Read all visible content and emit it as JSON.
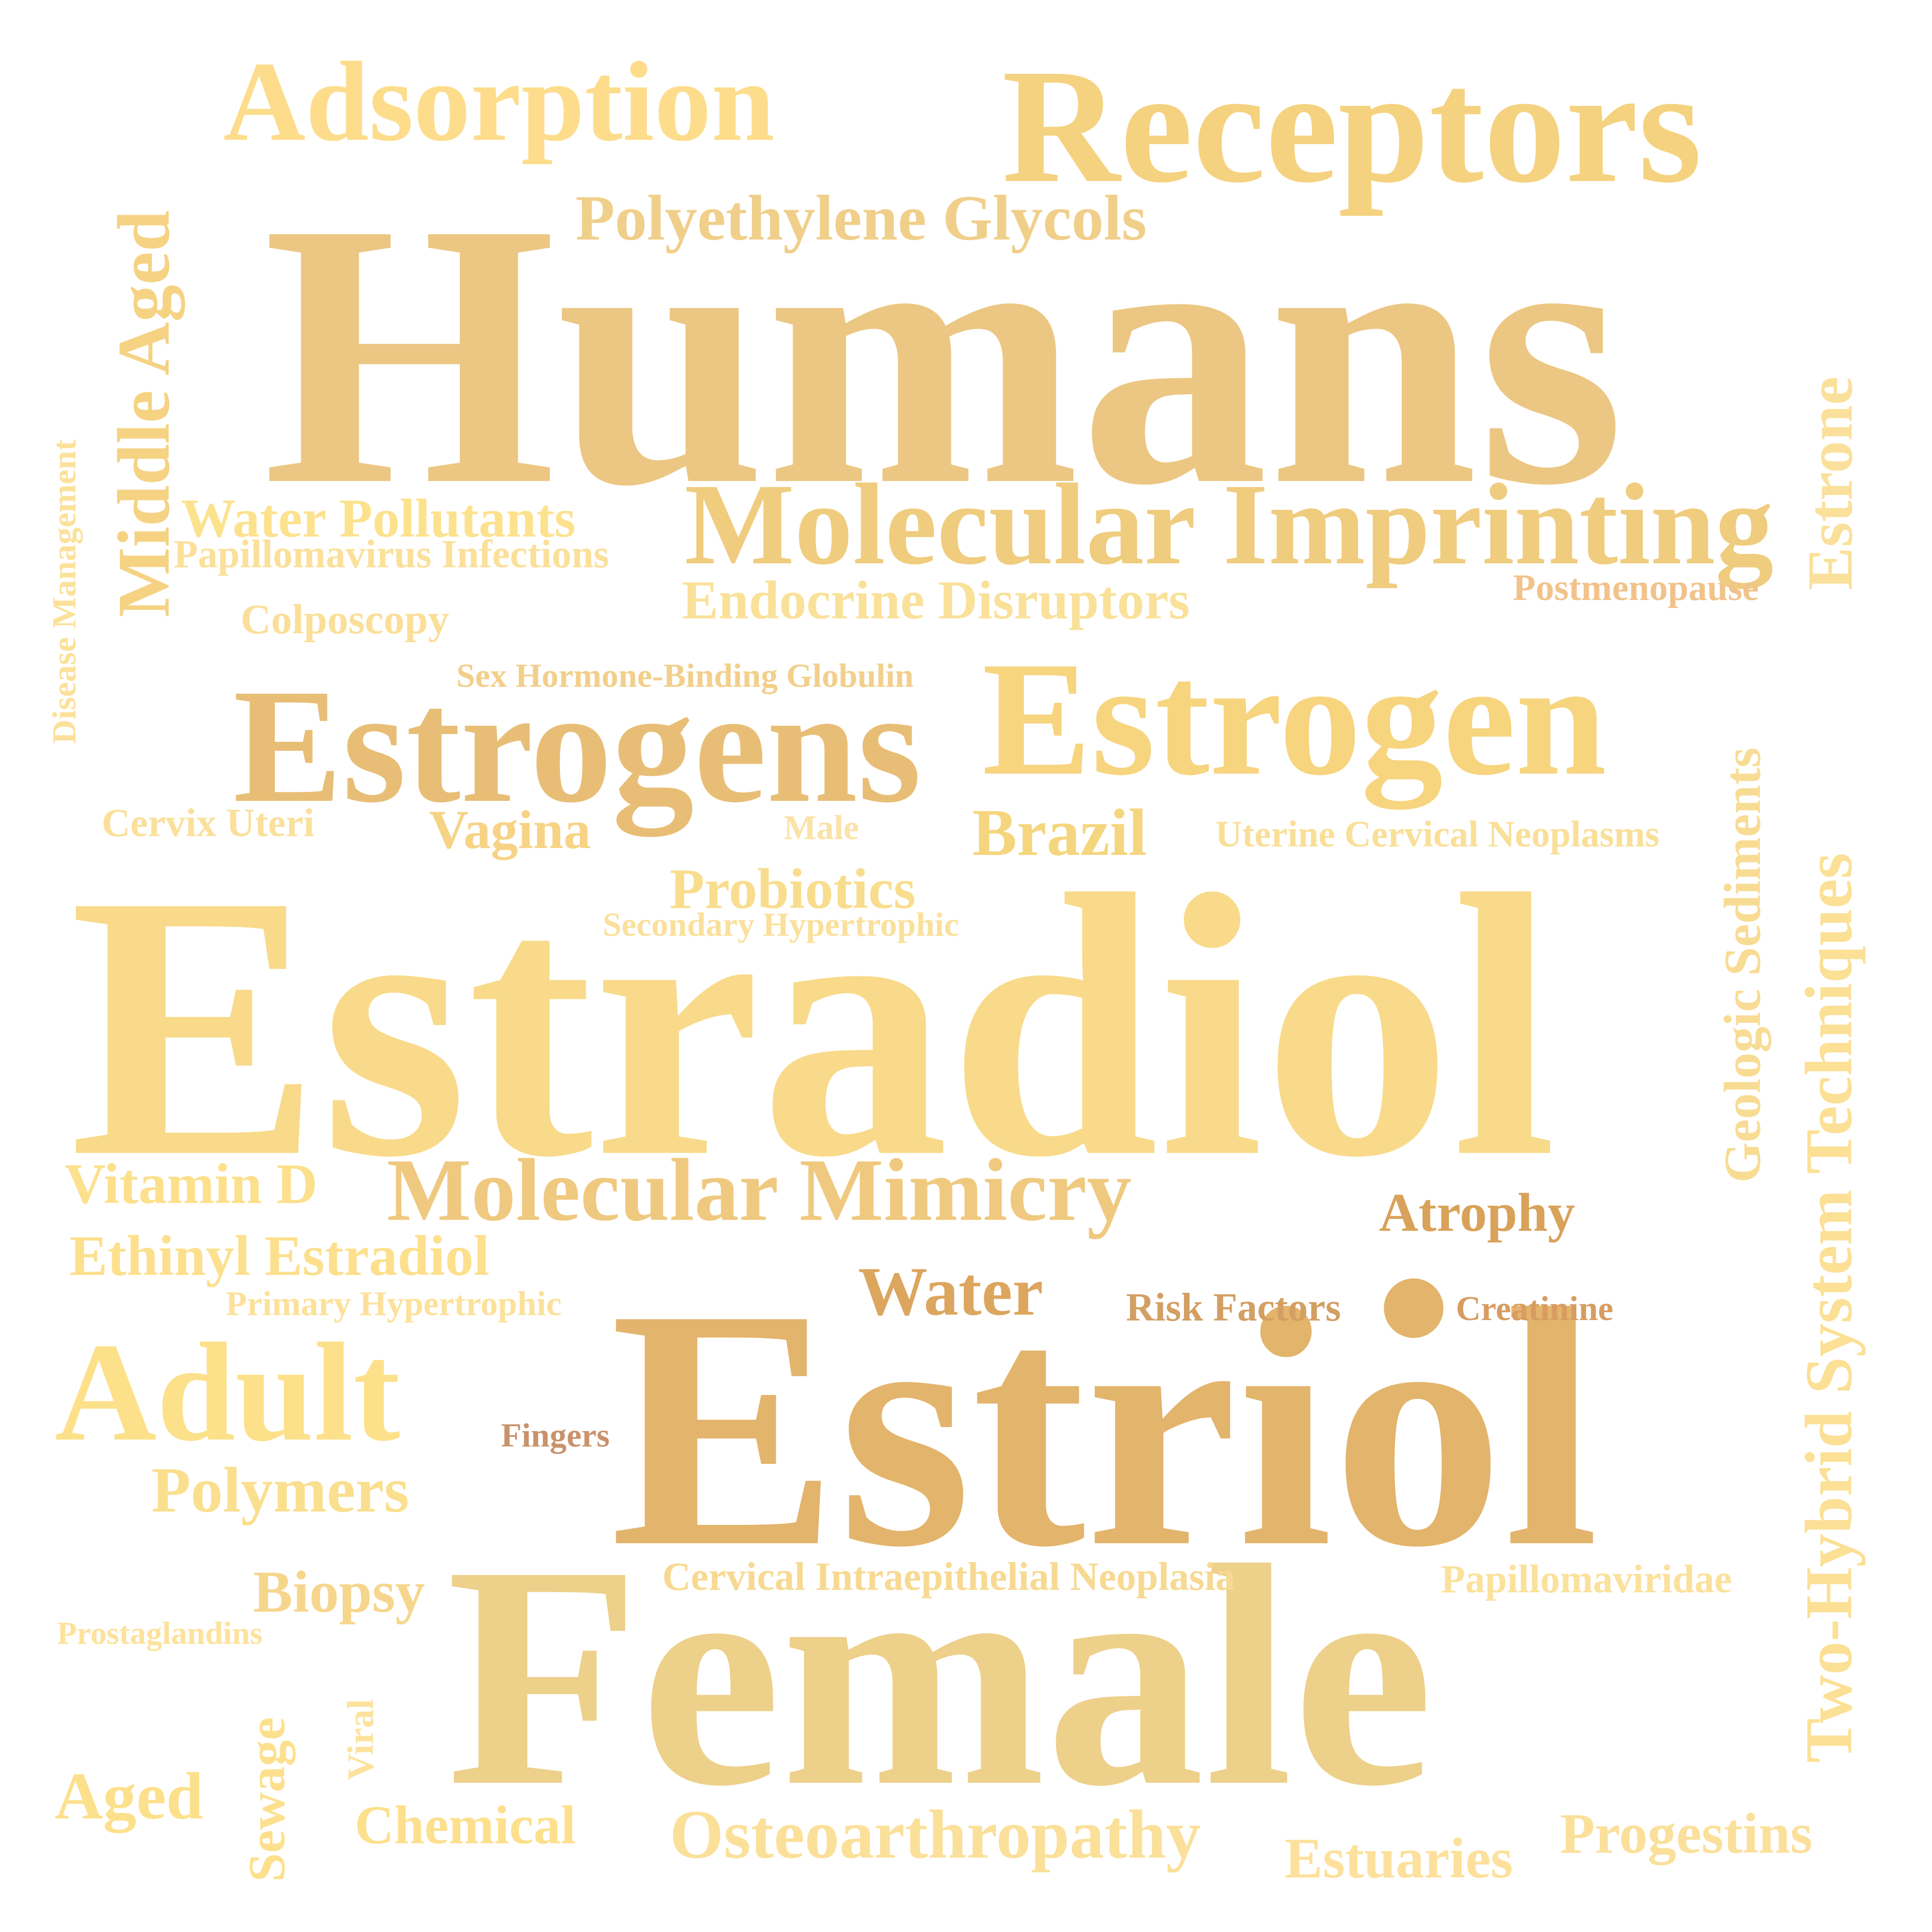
{
  "words": {
    "humans": "Humans",
    "estradiol": "Estradiol",
    "estriol": "Estriol",
    "female": "Female",
    "receptors": "Receptors",
    "adsorption": "Adsorption",
    "polyethylene_glycols": "Polyethylene Glycols",
    "molecular_imprinting": "Molecular Imprinting",
    "water_pollutants": "Water Pollutants",
    "papillomavirus_infections": "Papillomavirus Infections",
    "endocrine_disruptors": "Endocrine Disruptors",
    "postmenopause": "Postmenopause",
    "colposcopy": "Colposcopy",
    "sex_hormone_binding_globulin": "Sex Hormone-Binding Globulin",
    "estrogens": "Estrogens",
    "estrogen": "Estrogen",
    "cervix_uteri": "Cervix Uteri",
    "vagina": "Vagina",
    "male": "Male",
    "brazil": "Brazil",
    "uterine_cervical_neoplasms": "Uterine Cervical Neoplasms",
    "probiotics": "Probiotics",
    "secondary_hypertrophic": "Secondary Hypertrophic",
    "vitamin_d": "Vitamin D",
    "molecular_mimicry": "Molecular Mimicry",
    "atrophy": "Atrophy",
    "ethinyl_estradiol": "Ethinyl Estradiol",
    "water": "Water",
    "primary_hypertrophic": "Primary Hypertrophic",
    "risk_factors": "Risk Factors",
    "creatinine": "Creatinine",
    "adult": "Adult",
    "fingers": "Fingers",
    "polymers": "Polymers",
    "cervical_intraepithelial_neoplasia": "Cervical Intraepithelial Neoplasia",
    "papillomaviridae": "Papillomaviridae",
    "biopsy": "Biopsy",
    "prostaglandins": "Prostaglandins",
    "aged": "Aged",
    "chemical": "Chemical",
    "osteoarthropathy": "Osteoarthropathy",
    "estuaries": "Estuaries",
    "progestins": "Progestins",
    "middle_aged": "Middle Aged",
    "disease_management": "Disease Management",
    "estrone": "Estrone",
    "geologic_sediments": "Geologic Sediments",
    "two_hybrid_system_techniques": "Two-Hybrid System Techniques",
    "sewage": "Sewage",
    "viral": "Viral"
  },
  "colors": {
    "humans": "#ecc783",
    "estradiol": "#f8da8a",
    "estriol": "#e3b46c",
    "female": "#edd08a",
    "receptors": "#f5d27f",
    "adsorption": "#fddd8c",
    "polyethylene_glycols": "#f0cf8a",
    "molecular_imprinting": "#efcc7e",
    "water_pollutants": "#fde28e",
    "papillomavirus_infections": "#fbe09a",
    "endocrine_disruptors": "#fae19a",
    "postmenopause": "#f1c38b",
    "colposcopy": "#fbdf99",
    "sex_hormone_binding_globulin": "#f2cf8b",
    "estrogens": "#e8be76",
    "estrogen": "#f7d47e",
    "cervix_uteri": "#fae09b",
    "vagina": "#f6d385",
    "male": "#fbe2a6",
    "brazil": "#f5d67e",
    "uterine_cervical_neoplasms": "#fadf98",
    "probiotics": "#f9dd8e",
    "secondary_hypertrophic": "#fae09b",
    "vitamin_d": "#fde08c",
    "molecular_mimicry": "#efc97f",
    "atrophy": "#d9a25a",
    "ethinyl_estradiol": "#fde08d",
    "water": "#dca65e",
    "primary_hypertrophic": "#fce19a",
    "risk_factors": "#d39f63",
    "creatinine": "#d89c61",
    "adult": "#fde18a",
    "fingers": "#c9926b",
    "polymers": "#fadf8e",
    "cervical_intraepithelial_neoplasia": "#f7d991",
    "papillomaviridae": "#fbe19b",
    "biopsy": "#f6d68c",
    "prostaglandins": "#fde29b",
    "aged": "#fde08c",
    "chemical": "#fde08e",
    "osteoarthropathy": "#fbe09a",
    "estuaries": "#fde09b",
    "progestins": "#fbe09b",
    "middle_aged": "#f5d383",
    "disease_management": "#fce19b",
    "estrone": "#fae09a",
    "geologic_sediments": "#f8dc94",
    "two_hybrid_system_techniques": "#fbe095",
    "sewage": "#fde08d",
    "viral": "#fde29c",
    "bullet": "#e3b46c",
    "background": "#ffffff"
  }
}
